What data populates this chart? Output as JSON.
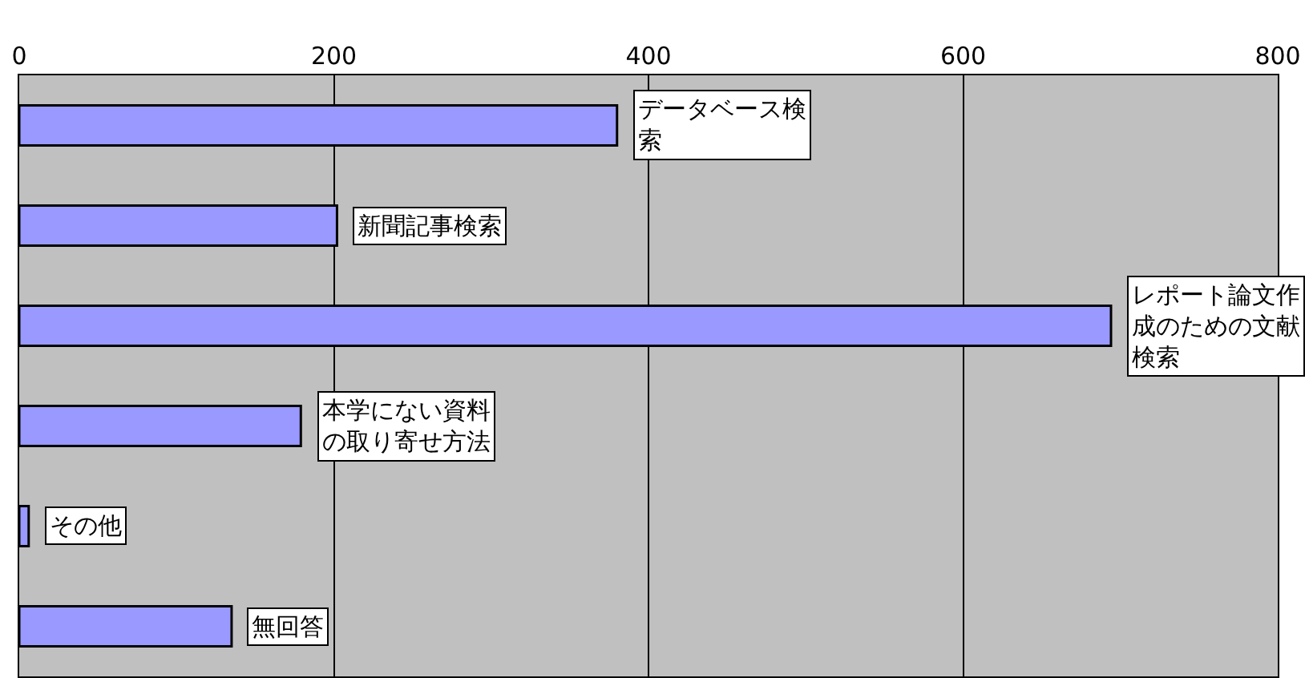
{
  "chart_data": {
    "type": "bar",
    "orientation": "horizontal",
    "categories": [
      "データベース検索",
      "新聞記事検索",
      "レポート論文作成のための文献検索",
      "本学にない資料の取り寄せ方法",
      "その他",
      "無回答"
    ],
    "values": [
      380,
      202,
      694,
      179,
      6,
      135
    ],
    "color": "#9999ff",
    "xlim": [
      0,
      800
    ],
    "xticks": [
      0,
      200,
      400,
      600,
      800
    ],
    "grid": "x",
    "tick_labels": "x"
  }
}
